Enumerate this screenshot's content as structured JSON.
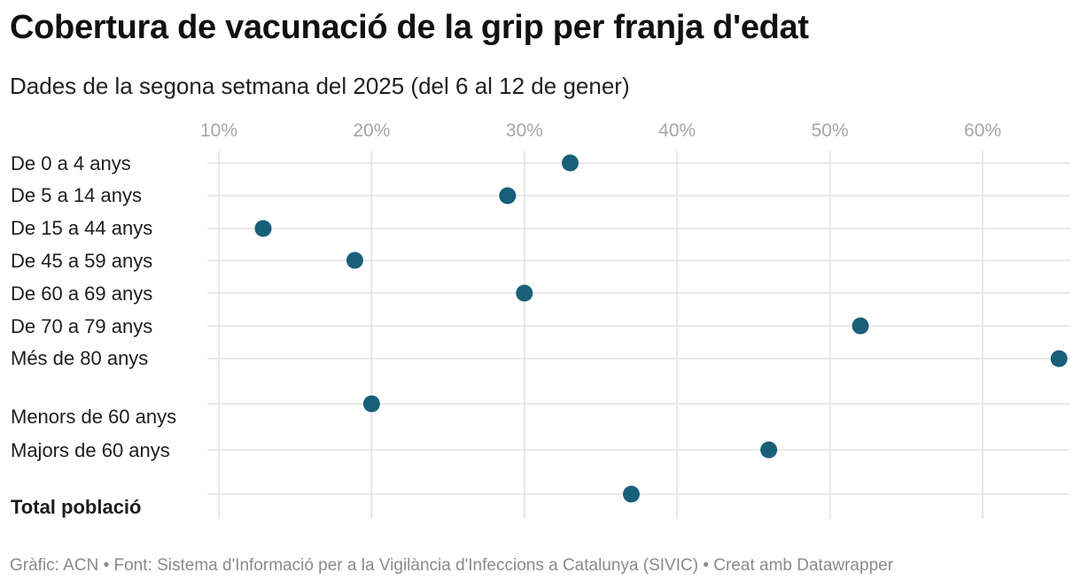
{
  "header": {
    "title": "Cobertura de vacunació de la grip per franja d'edat",
    "subtitle": "Dades de la segona setmana del 2025 (del 6 al 12 de gener)"
  },
  "footer": {
    "text": "Gràfic: ACN • Font: Sistema d'Informació per a la Vigilància d'Infeccions a Catalunya (SIVIC) • Creat amb Datawrapper"
  },
  "chart_data": {
    "type": "scatter",
    "title": "Cobertura de vacunació de la grip per franja d'edat",
    "subtitle": "Dades de la segona setmana del 2025 (del 6 al 12 de gener)",
    "xlabel": "",
    "ylabel": "",
    "x_ticks": [
      "10%",
      "20%",
      "30%",
      "40%",
      "50%",
      "60%"
    ],
    "x_tick_values": [
      10,
      20,
      30,
      40,
      50,
      60
    ],
    "xlim": [
      10,
      65
    ],
    "x_axis_position": "top",
    "grid": true,
    "legend": "none",
    "dot_color": "#1a5f7a",
    "categories": [
      "De 0 a 4 anys",
      "De 5 a 14 anys",
      "De 15 a 44 anys",
      "De 45 a 59 anys",
      "De 60 a 69 anys",
      "De 70 a 79 anys",
      "Més de 80 anys",
      "Menors de 60 anys",
      "Majors de 60 anys",
      "Total població"
    ],
    "values": [
      33,
      28.9,
      12.9,
      18.9,
      30,
      52,
      65,
      20,
      46,
      37
    ],
    "bold_categories": [
      "Total població"
    ]
  }
}
